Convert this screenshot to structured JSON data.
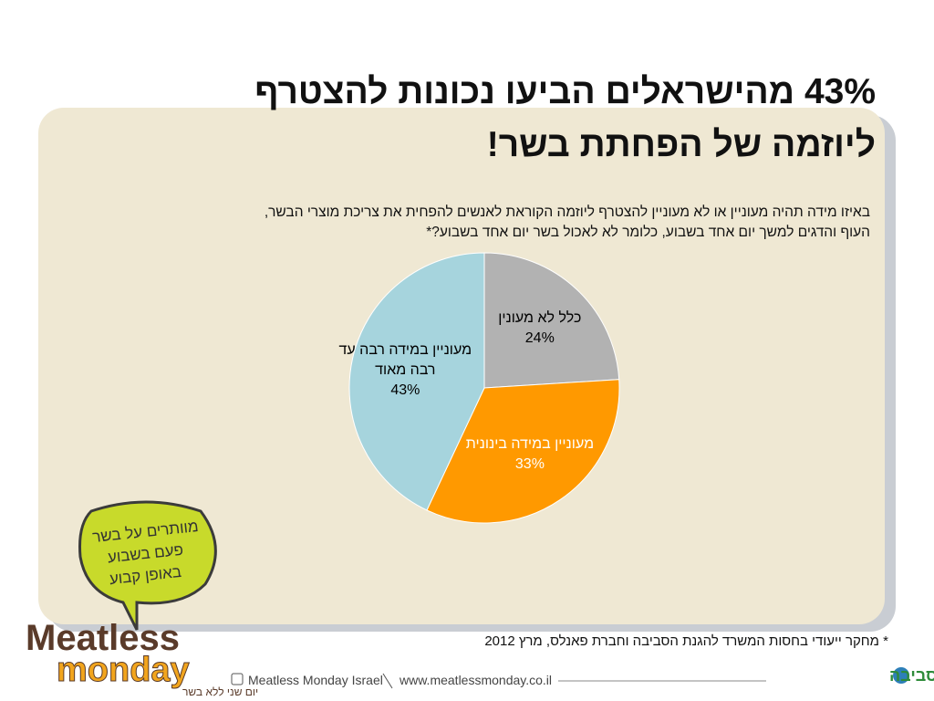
{
  "slide": {
    "title": [
      "43% מהישראלים הביעו נכונות להצטרף",
      "ליוזמה של הפחתת בשר!"
    ],
    "question": [
      "באיזו מידה תהיה מעוניין או לא מעוניין להצטרף ליוזמה הקוראת לאנשים להפחית את צריכת מוצרי הבשר,",
      "העוף והדגים למשך יום אחד בשבוע, כלומר לא לאכול בשר יום אחד בשבוע?*"
    ],
    "footnote": "* מחקר ייעודי בחסות המשרד להגנת הסביבה וחברת פאנלס, מרץ 2012",
    "bubble": [
      "מוותרים על בשר",
      "פעם בשבוע",
      "באופן קבוע"
    ],
    "logo": [
      "Meatless",
      "monday",
      "יום שני ללא בשר"
    ],
    "footer_social": "Meatless Monday Israel",
    "footer_url": "www.meatlessmonday.co.il",
    "partner": "חיים וסביבה"
  },
  "chart_data": {
    "type": "pie",
    "categories": [
      "כלל לא מעונין",
      "מעוניין במידה בינונית",
      "מעוניין במידה רבה עד רבה מאוד"
    ],
    "values": [
      24,
      33,
      43
    ],
    "value_labels": [
      "24%",
      "33%",
      "43%"
    ],
    "colors": [
      "#b2b2b2",
      "#ff9900",
      "#a6d4dd"
    ],
    "label_colors": [
      "#000000",
      "#ffffff",
      "#000000"
    ]
  }
}
